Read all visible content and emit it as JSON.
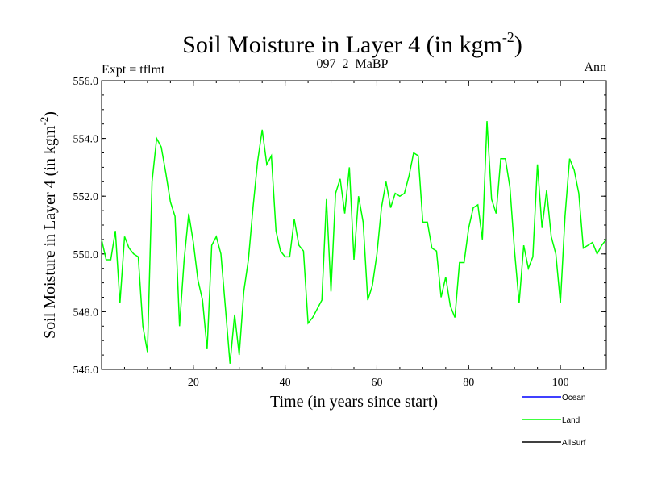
{
  "chart_data": {
    "type": "line",
    "title_main": "Soil Moisture in Layer 4 (in kgm",
    "title_sup": "-2",
    "title_end": ")",
    "left_label": "Expt = tflmt",
    "center_label": "097_2_MaBP",
    "right_label": "Ann",
    "xlabel": "Time (in years since start)",
    "ylabel_main": "Soil Moisture in Layer 4 (in kgm",
    "ylabel_sup": "-2",
    "ylabel_end": ")",
    "xlim": [
      0,
      110
    ],
    "ylim": [
      546.0,
      556.0
    ],
    "x_ticks": [
      20,
      40,
      60,
      80,
      100
    ],
    "y_ticks": [
      "546.0",
      "548.0",
      "550.0",
      "552.0",
      "554.0",
      "556.0"
    ],
    "legend": [
      {
        "name": "Ocean",
        "color": "#0000ff"
      },
      {
        "name": "Land",
        "color": "#00ff00"
      },
      {
        "name": "AllSurf",
        "color": "#000000"
      }
    ],
    "series": [
      {
        "name": "Land",
        "color": "#00ff00",
        "x": [
          0,
          1,
          2,
          3,
          4,
          5,
          6,
          7,
          8,
          9,
          10,
          11,
          12,
          13,
          14,
          15,
          16,
          17,
          18,
          19,
          20,
          21,
          22,
          23,
          24,
          25,
          26,
          27,
          28,
          29,
          30,
          31,
          32,
          33,
          34,
          35,
          36,
          37,
          38,
          39,
          40,
          41,
          42,
          43,
          44,
          45,
          46,
          47,
          48,
          49,
          50,
          51,
          52,
          53,
          54,
          55,
          56,
          57,
          58,
          59,
          60,
          61,
          62,
          63,
          64,
          65,
          66,
          67,
          68,
          69,
          70,
          71,
          72,
          73,
          74,
          75,
          76,
          77,
          78,
          79,
          80,
          81,
          82,
          83,
          84,
          85,
          86,
          87,
          88,
          89,
          90,
          91,
          92,
          93,
          94,
          95,
          96,
          97,
          98,
          99,
          100,
          101,
          102,
          103,
          104,
          105,
          106,
          107,
          108,
          109,
          110
        ],
        "values": [
          550.5,
          549.8,
          549.8,
          550.8,
          548.3,
          550.6,
          550.2,
          550.0,
          549.9,
          547.5,
          546.6,
          552.5,
          554.0,
          553.7,
          552.8,
          551.8,
          551.3,
          547.5,
          549.8,
          551.4,
          550.4,
          549.1,
          548.4,
          546.7,
          550.3,
          550.6,
          550.0,
          548.1,
          546.2,
          547.9,
          546.5,
          548.7,
          549.8,
          551.6,
          553.2,
          554.3,
          553.1,
          553.4,
          550.8,
          550.1,
          549.9,
          549.9,
          551.2,
          550.3,
          550.1,
          547.6,
          547.8,
          548.1,
          548.4,
          551.9,
          548.7,
          552.1,
          552.6,
          551.4,
          553.0,
          549.8,
          552.0,
          551.1,
          548.4,
          548.9,
          550.0,
          551.6,
          552.5,
          551.6,
          552.1,
          552.0,
          552.1,
          552.7,
          553.5,
          553.4,
          551.1,
          551.1,
          550.2,
          550.1,
          548.5,
          549.2,
          548.2,
          547.8,
          549.7,
          549.7,
          550.9,
          551.6,
          551.7,
          550.5,
          554.6,
          551.9,
          551.4,
          553.3,
          553.3,
          552.3,
          550.1,
          548.3,
          550.3,
          549.5,
          549.9,
          553.1,
          550.9,
          552.2,
          550.6,
          550.0,
          548.3,
          551.3,
          553.3,
          552.9,
          552.1,
          550.2,
          550.3,
          550.4,
          550.0,
          550.3,
          550.5
        ]
      }
    ]
  }
}
